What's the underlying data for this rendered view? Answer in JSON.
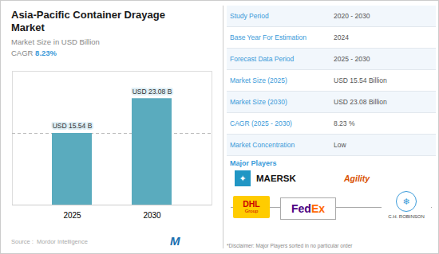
{
  "chart_data": {
    "type": "bar",
    "title": [
      "Asia-Pacific Container Drayage",
      "Market"
    ],
    "subtitle": "Market Size in USD Billion",
    "annotations": {
      "cagr": [
        "CAGR",
        "8.23%"
      ],
      "source": "Source :  Mordor Intelligence",
      "logo": "M"
    },
    "categories": [
      "2025",
      "2030"
    ],
    "values": [
      15.54,
      23.08
    ],
    "value_labels": [
      "USD 15.54 B",
      "USD 23.08 B"
    ],
    "data_labels": true,
    "color": "#5aabbe",
    "ylim": [
      0,
      29
    ],
    "tick_labels": "x",
    "grid": false,
    "table": [
      [
        "Study Period",
        "2020 - 2030"
      ],
      [
        "Base Year For Estimation",
        "2024"
      ],
      [
        "Forecast Data Period",
        "2025 - 2030"
      ],
      [
        "Market Size (2025)",
        "USD 15.54 Billion"
      ],
      [
        "Market Size (2030)",
        "USD 23.08 Billion"
      ],
      [
        "CAGR (2025 - 2030)",
        "8.23 %"
      ],
      [
        "Market Concentration",
        "Low"
      ]
    ],
    "major_players_label": "Major Players",
    "major_players": [
      {
        "name": "MAERSK",
        "icon": "✦",
        "color": "#111111"
      },
      {
        "name": "Agility",
        "color": "#d94f00"
      },
      {
        "name": [
          "DHL",
          "Group"
        ],
        "color": "#cc0000"
      },
      {
        "name": [
          "Fed",
          "Ex"
        ],
        "colors": [
          "#4b0082",
          "#ff6600"
        ]
      },
      {
        "name": "C.H. ROBINSON",
        "icon": "❄",
        "color": "#444444"
      }
    ],
    "disclaimer": "*Disclaimer: Major Players sorted in no particular order"
  }
}
